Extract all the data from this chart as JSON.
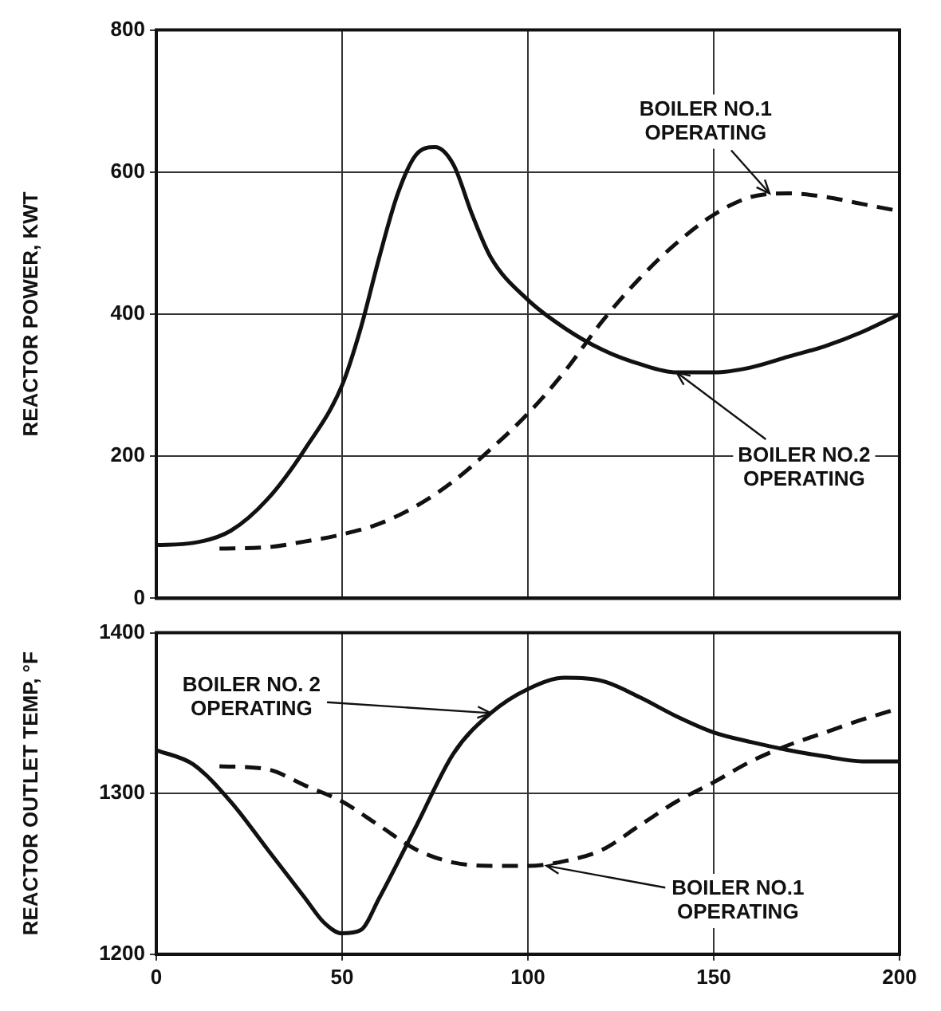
{
  "chart_data": [
    {
      "type": "line",
      "ylabel": "REACTOR POWER, KWT",
      "xlim": [
        0,
        200
      ],
      "xticks": [
        0,
        50,
        100,
        150,
        200
      ],
      "ylim": [
        0,
        800
      ],
      "yticks": [
        0,
        200,
        400,
        600,
        800
      ],
      "grid": true,
      "tick_labels": "y",
      "marker": "none",
      "series": [
        {
          "color": "#111111",
          "line_style": "solid",
          "x": [
            0,
            10,
            20,
            30,
            40,
            50,
            55,
            60,
            65,
            70,
            75,
            80,
            85,
            90,
            100,
            110,
            120,
            130,
            140,
            150,
            160,
            170,
            180,
            190,
            200
          ],
          "values": [
            75,
            78,
            95,
            140,
            210,
            300,
            380,
            480,
            570,
            625,
            635,
            610,
            540,
            480,
            420,
            380,
            350,
            330,
            318,
            318,
            325,
            340,
            355,
            375,
            400
          ]
        },
        {
          "color": "#111111",
          "line_style": "dashed",
          "x": [
            17,
            30,
            40,
            50,
            60,
            70,
            80,
            90,
            100,
            110,
            120,
            130,
            140,
            150,
            160,
            170,
            180,
            190,
            200
          ],
          "values": [
            70,
            72,
            80,
            90,
            105,
            130,
            165,
            210,
            260,
            320,
            390,
            450,
            500,
            540,
            565,
            570,
            565,
            555,
            545
          ]
        }
      ],
      "annotations": [
        {
          "text": "BOILER NO.1\nOPERATING",
          "x": 165,
          "y": 570
        },
        {
          "text": "BOILER NO.2\nOPERATING",
          "x": 140,
          "y": 318
        }
      ]
    },
    {
      "type": "line",
      "ylabel": "REACTOR OUTLET TEMP, °F",
      "xlim": [
        0,
        200
      ],
      "xticks": [
        0,
        50,
        100,
        150,
        200
      ],
      "ylim": [
        1200,
        1400
      ],
      "yticks": [
        1200,
        1300,
        1400
      ],
      "grid": true,
      "marker": "none",
      "series": [
        {
          "color": "#111111",
          "line_style": "solid",
          "x": [
            0,
            10,
            20,
            30,
            40,
            45,
            50,
            55,
            60,
            70,
            80,
            90,
            100,
            110,
            120,
            130,
            140,
            150,
            160,
            170,
            180,
            190,
            200
          ],
          "values": [
            1327,
            1318,
            1295,
            1265,
            1235,
            1220,
            1213,
            1215,
            1235,
            1280,
            1325,
            1350,
            1365,
            1372,
            1370,
            1360,
            1348,
            1338,
            1332,
            1327,
            1323,
            1320,
            1320
          ]
        },
        {
          "color": "#111111",
          "line_style": "dashed",
          "x": [
            17,
            30,
            40,
            50,
            60,
            70,
            80,
            90,
            100,
            110,
            120,
            130,
            140,
            150,
            160,
            170,
            180,
            190,
            200
          ],
          "values": [
            1317,
            1315,
            1305,
            1295,
            1280,
            1265,
            1257,
            1255,
            1255,
            1258,
            1265,
            1280,
            1295,
            1307,
            1320,
            1330,
            1338,
            1346,
            1353
          ]
        }
      ],
      "annotations": [
        {
          "text": "BOILER NO. 2\nOPERATING",
          "x": 90,
          "y": 1350
        },
        {
          "text": "BOILER NO.1\nOPERATING",
          "x": 105,
          "y": 1255
        }
      ]
    }
  ]
}
